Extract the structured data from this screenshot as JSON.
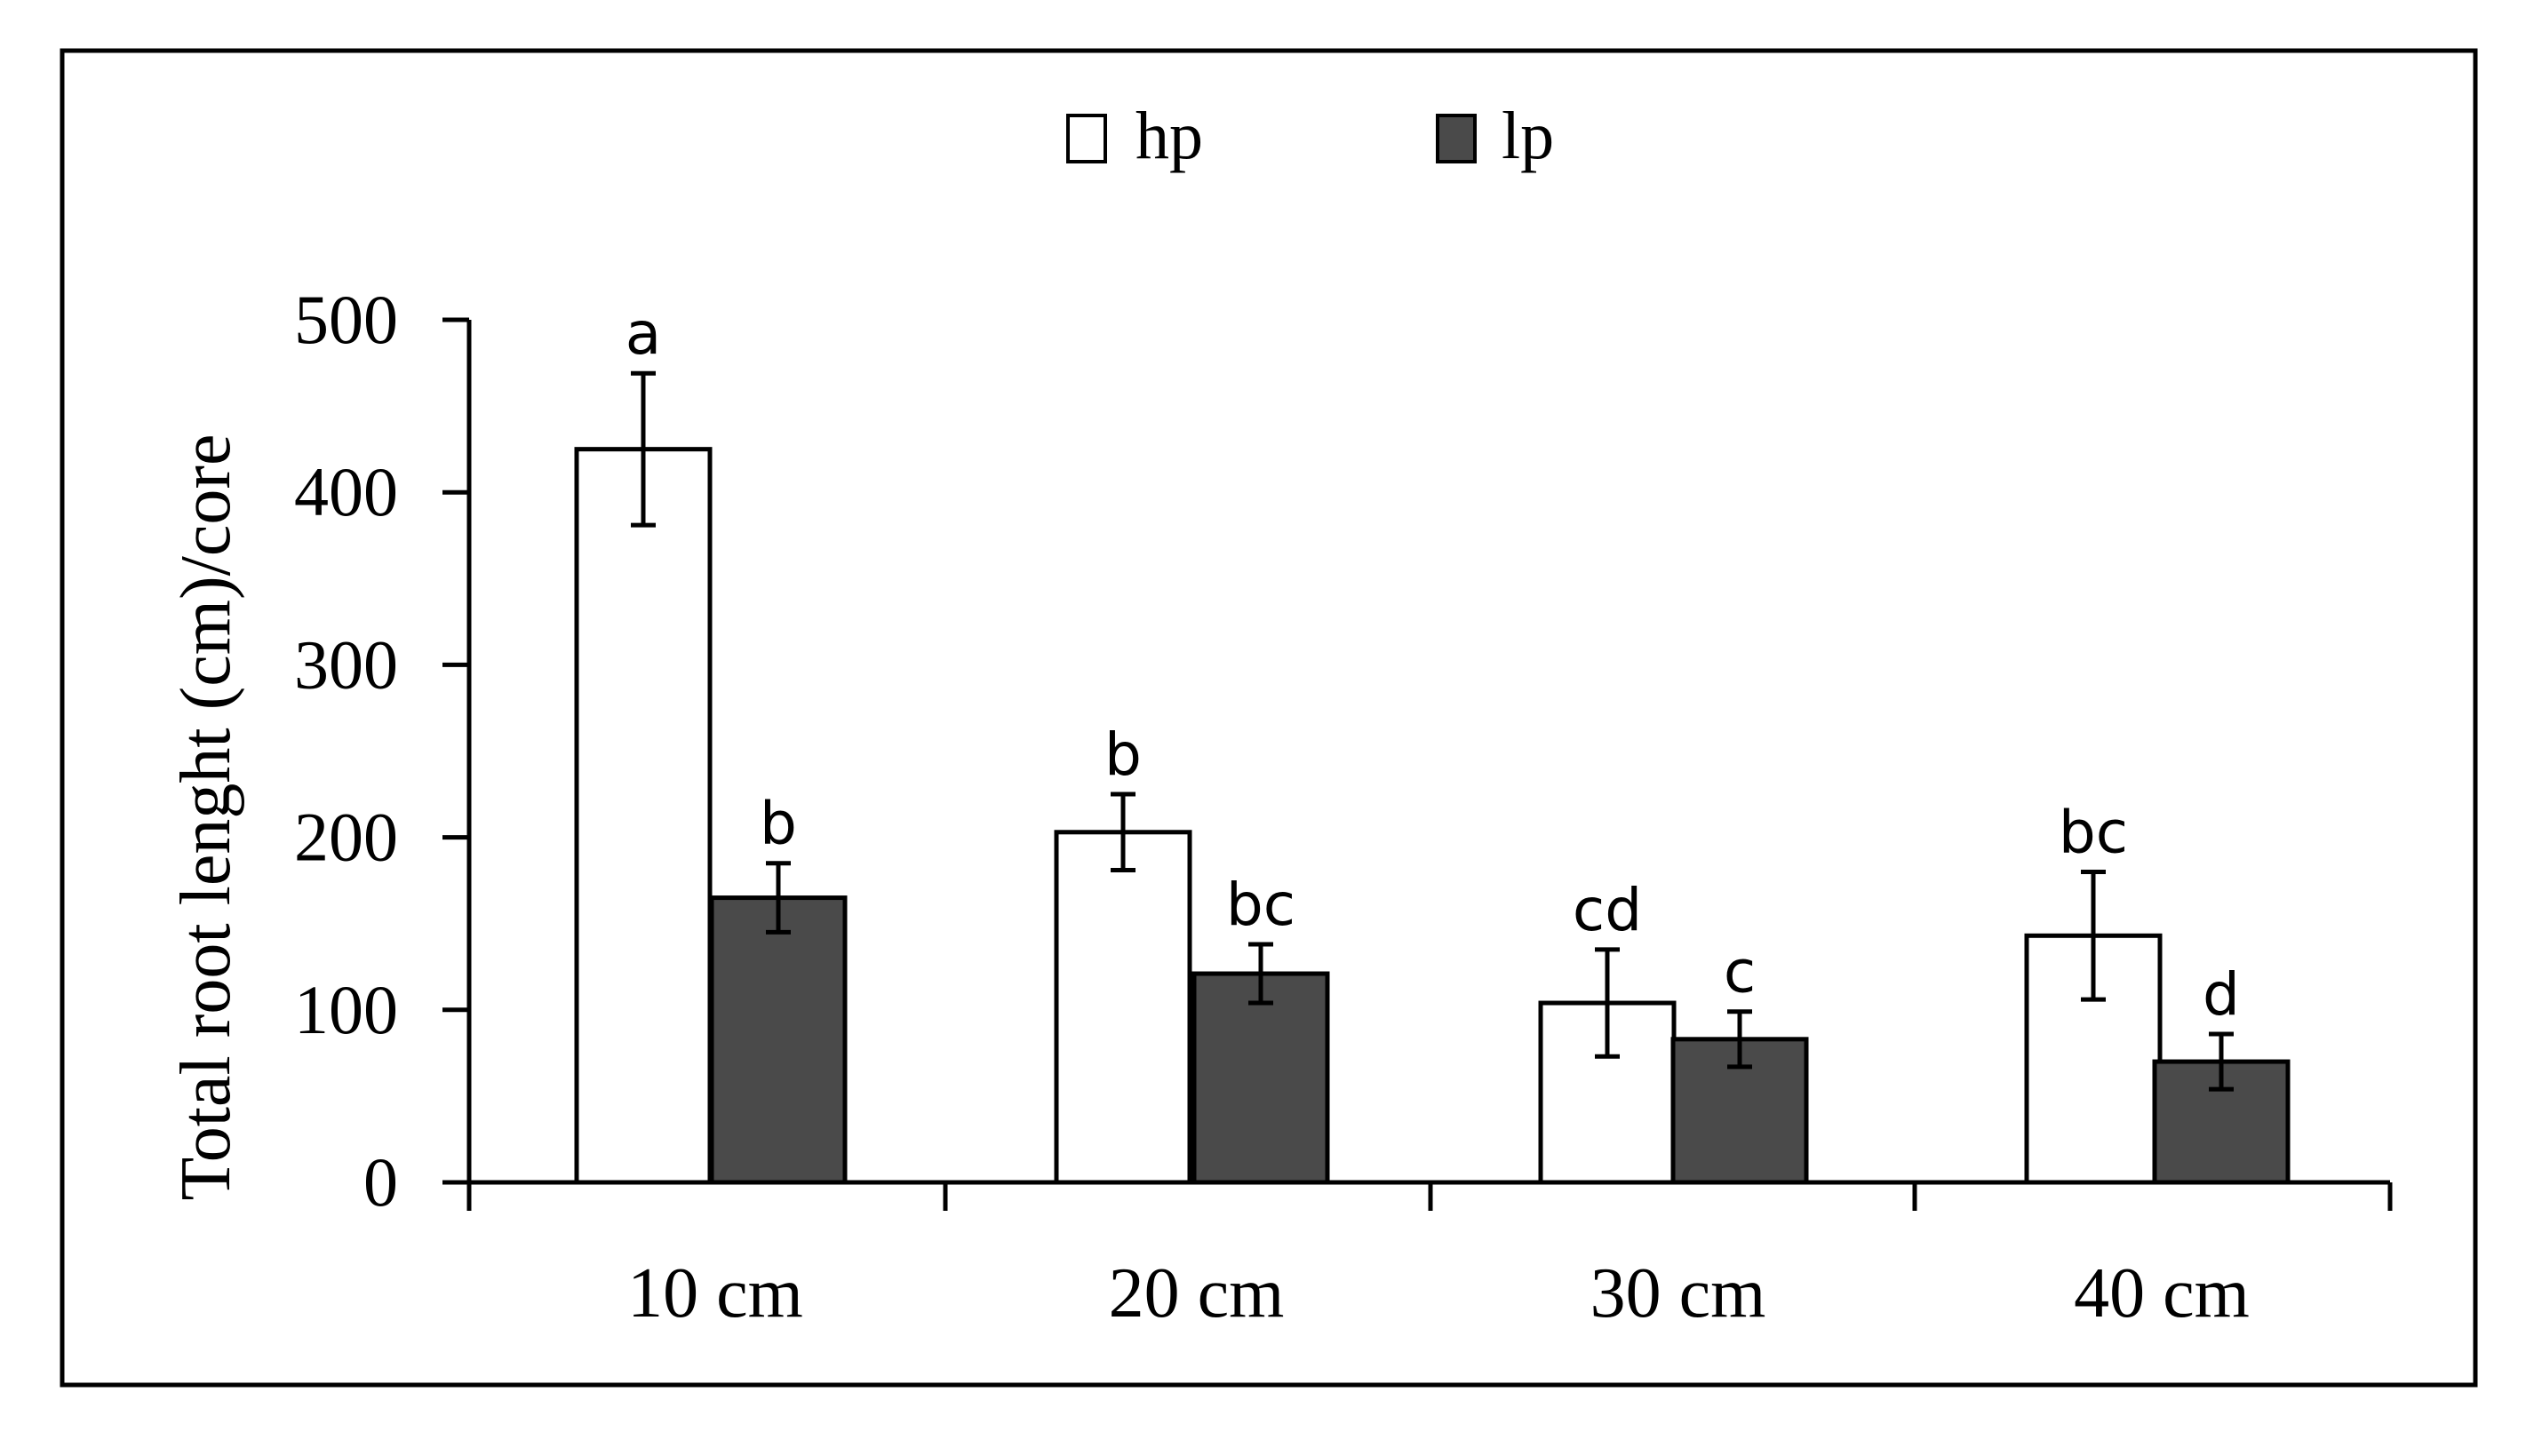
{
  "chart_data": {
    "type": "bar",
    "title": "",
    "xlabel": "",
    "ylabel": "Total root lenght (cm)/core",
    "ylim": [
      0,
      500
    ],
    "yticks": [
      "0",
      "100",
      "200",
      "300",
      "400",
      "500"
    ],
    "grid": false,
    "legend_position": "top-center",
    "categories": [
      "10 cm",
      "20 cm",
      "30 cm",
      "40 cm"
    ],
    "series": [
      {
        "name": "hp",
        "color": "#ffffff",
        "values": [
          425,
          203,
          104,
          143
        ],
        "errors": [
          44,
          22,
          31,
          37
        ],
        "labels": [
          "a",
          "b",
          "cd",
          "bc"
        ]
      },
      {
        "name": "lp",
        "color": "#4a4a4a",
        "values": [
          165,
          121,
          83,
          70
        ],
        "errors": [
          20,
          17,
          16,
          16
        ],
        "labels": [
          "b",
          "bc",
          "c",
          "d"
        ]
      }
    ]
  }
}
